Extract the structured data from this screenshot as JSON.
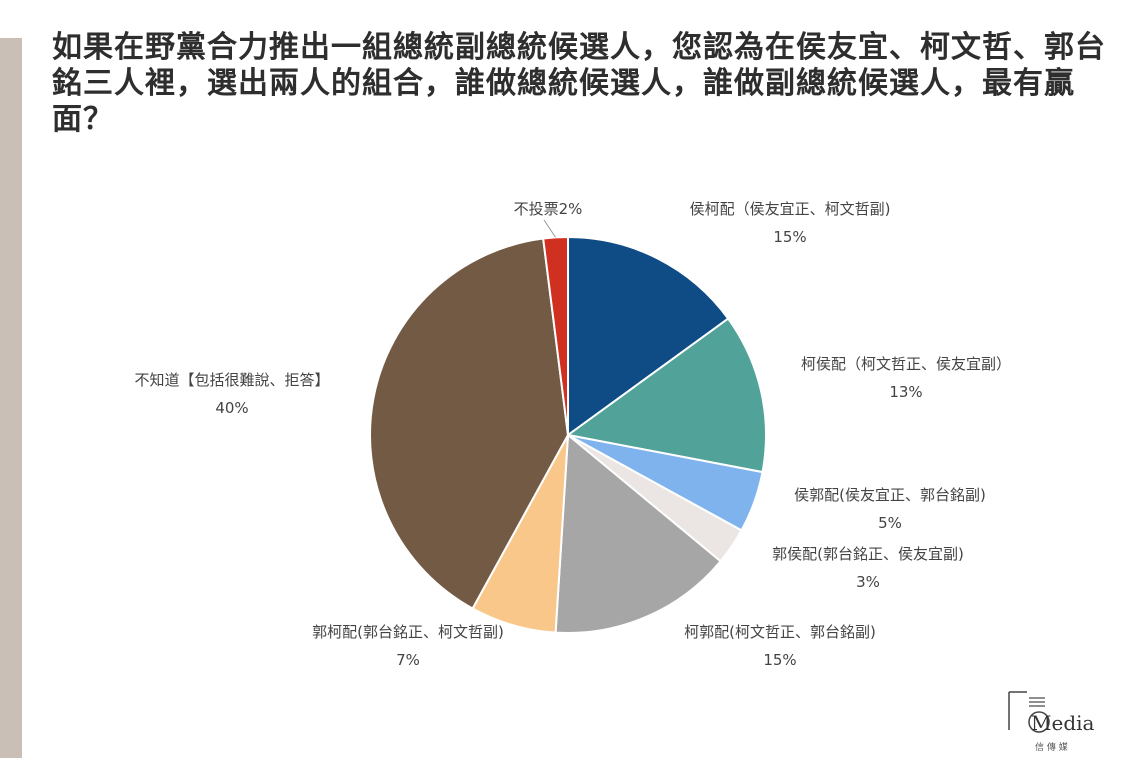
{
  "title": "如果在野黨合力推出一組總統副總統候選人，您認為在侯友宜、柯文哲、郭台銘三人裡，選出兩人的組合，誰做總統候選人，誰做副總統候選人，最有贏面？",
  "chart_data": {
    "type": "pie",
    "title": "如果在野黨合力推出一組總統副總統候選人，您認為在侯友宜、柯文哲、郭台銘三人裡，選出兩人的組合，誰做總統候選人，誰做副總統候選人，最有贏面？",
    "start": "12 o'clock",
    "direction": "clockwise",
    "slices": [
      {
        "name": "侯柯配（侯友宜正、柯文哲副)",
        "value": 15,
        "value_label": "15%",
        "color": "#0f4c86"
      },
      {
        "name": "柯侯配（柯文哲正、侯友宜副）",
        "value": 13,
        "value_label": "13%",
        "color": "#51a39a"
      },
      {
        "name": "侯郭配(侯友宜正、郭台銘副)",
        "value": 5,
        "value_label": "5%",
        "color": "#7fb3ee"
      },
      {
        "name": "郭侯配(郭台銘正、侯友宜副)",
        "value": 3,
        "value_label": "3%",
        "color": "#ebe6e3"
      },
      {
        "name": "柯郭配(柯文哲正、郭台銘副)",
        "value": 15,
        "value_label": "15%",
        "color": "#a6a6a6"
      },
      {
        "name": "郭柯配(郭台銘正、柯文哲副)",
        "value": 7,
        "value_label": "7%",
        "color": "#f9c78a"
      },
      {
        "name": "不知道【包括很難說、拒答】",
        "value": 40,
        "value_label": "40%",
        "color": "#735a45"
      },
      {
        "name": "不投票",
        "value": 2,
        "value_label": "2%",
        "color": "#d0301f"
      }
    ]
  },
  "logo": {
    "name": "Media",
    "sub": "信 傳 媒"
  }
}
